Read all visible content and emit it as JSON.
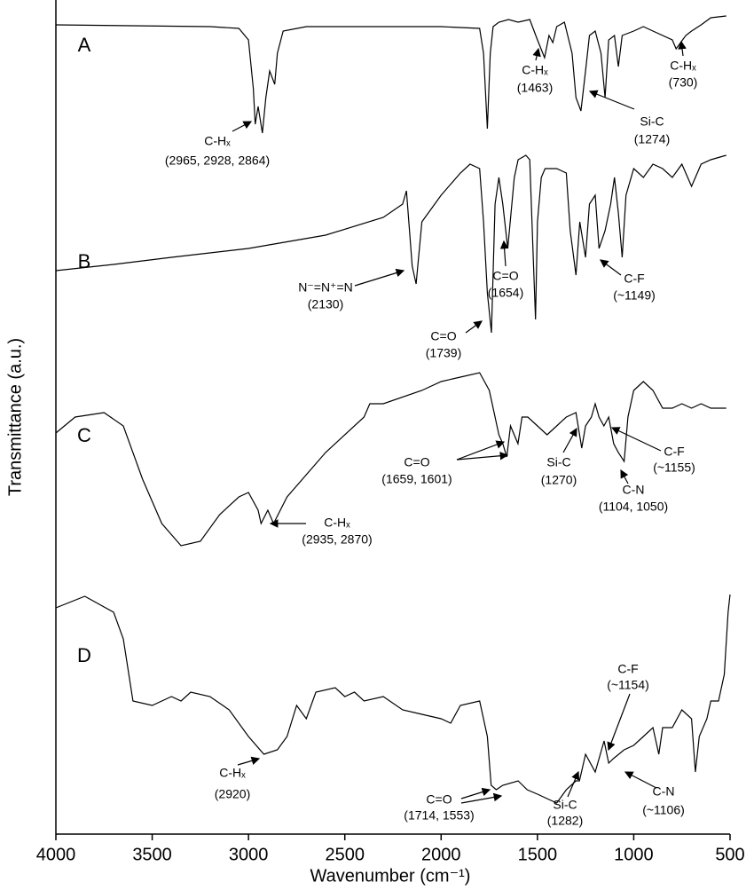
{
  "chart_data": {
    "type": "line",
    "x_label": "Wavenumber (cm⁻¹)",
    "y_label": "Transmittance (a.u.)",
    "xlim": [
      4000,
      500
    ],
    "xticks": [
      4000,
      3500,
      3000,
      2500,
      2000,
      1500,
      1000,
      500
    ],
    "ylim": [
      0,
      940
    ],
    "series": [
      {
        "name": "A",
        "color": "#000000",
        "x": [
          4000,
          3200,
          3050,
          3000,
          2975,
          2965,
          2950,
          2928,
          2910,
          2890,
          2864,
          2850,
          2820,
          2700,
          2000,
          1800,
          1780,
          1760,
          1745,
          1730,
          1700,
          1650,
          1600,
          1540,
          1500,
          1463,
          1440,
          1420,
          1400,
          1360,
          1320,
          1300,
          1274,
          1250,
          1230,
          1200,
          1170,
          1149,
          1130,
          1100,
          1080,
          1060,
          1000,
          950,
          900,
          800,
          780,
          730,
          700,
          650,
          600,
          520
        ],
        "values": [
          912,
          910,
          908,
          895,
          840,
          800,
          820,
          790,
          830,
          860,
          845,
          880,
          905,
          910,
          910,
          908,
          880,
          795,
          880,
          910,
          915,
          918,
          915,
          918,
          895,
          875,
          900,
          892,
          910,
          915,
          880,
          830,
          815,
          860,
          900,
          905,
          880,
          830,
          895,
          900,
          865,
          900,
          905,
          910,
          905,
          895,
          885,
          900,
          905,
          912,
          920,
          922
        ]
      },
      {
        "name": "B",
        "color": "#000000",
        "x": [
          4000,
          3700,
          3400,
          3000,
          2600,
          2300,
          2200,
          2180,
          2150,
          2130,
          2100,
          2000,
          1900,
          1850,
          1800,
          1780,
          1760,
          1739,
          1720,
          1700,
          1680,
          1654,
          1620,
          1600,
          1560,
          1540,
          1520,
          1510,
          1500,
          1480,
          1460,
          1400,
          1350,
          1330,
          1300,
          1280,
          1250,
          1230,
          1200,
          1180,
          1149,
          1120,
          1100,
          1080,
          1060,
          1040,
          1000,
          950,
          900,
          850,
          800,
          750,
          700,
          650,
          600,
          520
        ],
        "values": [
          635,
          642,
          650,
          660,
          675,
          695,
          710,
          725,
          640,
          620,
          690,
          720,
          745,
          755,
          750,
          690,
          610,
          565,
          710,
          740,
          710,
          660,
          740,
          760,
          765,
          760,
          640,
          580,
          690,
          740,
          750,
          750,
          745,
          680,
          630,
          690,
          650,
          710,
          720,
          660,
          680,
          710,
          740,
          700,
          650,
          720,
          750,
          740,
          755,
          750,
          740,
          755,
          730,
          755,
          760,
          765
        ]
      },
      {
        "name": "C",
        "color": "#000000",
        "x": [
          4000,
          3900,
          3750,
          3650,
          3550,
          3450,
          3350,
          3250,
          3150,
          3050,
          3000,
          2950,
          2935,
          2900,
          2870,
          2800,
          2600,
          2400,
          2370,
          2300,
          2100,
          2000,
          1900,
          1800,
          1750,
          1720,
          1700,
          1680,
          1659,
          1640,
          1601,
          1580,
          1550,
          1500,
          1450,
          1400,
          1350,
          1300,
          1270,
          1250,
          1220,
          1200,
          1180,
          1155,
          1130,
          1104,
          1080,
          1050,
          1030,
          1000,
          950,
          900,
          850,
          800,
          750,
          700,
          650,
          600,
          520
        ],
        "values": [
          452,
          470,
          475,
          460,
          400,
          350,
          325,
          330,
          360,
          380,
          385,
          365,
          350,
          365,
          350,
          380,
          430,
          470,
          485,
          485,
          500,
          510,
          515,
          520,
          500,
          470,
          450,
          440,
          425,
          460,
          440,
          470,
          470,
          460,
          450,
          460,
          470,
          475,
          435,
          460,
          470,
          485,
          470,
          460,
          470,
          440,
          430,
          420,
          470,
          500,
          510,
          500,
          480,
          480,
          485,
          480,
          485,
          480,
          480
        ]
      },
      {
        "name": "D",
        "color": "#000000",
        "x": [
          4000,
          3850,
          3700,
          3650,
          3600,
          3500,
          3400,
          3350,
          3300,
          3200,
          3100,
          3000,
          2920,
          2850,
          2800,
          2750,
          2700,
          2650,
          2550,
          2500,
          2450,
          2400,
          2300,
          2200,
          2100,
          2000,
          1950,
          1900,
          1800,
          1760,
          1740,
          1714,
          1680,
          1600,
          1553,
          1500,
          1450,
          1400,
          1350,
          1300,
          1282,
          1250,
          1200,
          1154,
          1130,
          1106,
          1050,
          1000,
          950,
          900,
          870,
          850,
          800,
          750,
          700,
          680,
          660,
          620,
          600,
          560,
          530,
          510,
          500
        ],
        "values": [
          255,
          268,
          250,
          220,
          150,
          145,
          155,
          150,
          160,
          155,
          140,
          110,
          90,
          95,
          110,
          145,
          130,
          160,
          165,
          155,
          160,
          150,
          155,
          140,
          135,
          130,
          125,
          145,
          150,
          110,
          55,
          50,
          55,
          60,
          50,
          45,
          40,
          35,
          50,
          60,
          60,
          90,
          70,
          105,
          80,
          85,
          95,
          100,
          110,
          120,
          90,
          120,
          120,
          140,
          130,
          70,
          110,
          130,
          150,
          150,
          180,
          250,
          270
        ]
      }
    ],
    "annotations": [
      {
        "lines": [
          "C-Hₓ",
          "(2965, 2928, 2864)"
        ]
      },
      {
        "lines": [
          "C-Hₓ",
          "(1463)"
        ]
      },
      {
        "lines": [
          "Si-C",
          "(1274)"
        ]
      },
      {
        "lines": [
          "C-Hₓ",
          "(730)"
        ]
      },
      {
        "lines": [
          "N⁻=N⁺=N",
          "(2130)"
        ]
      },
      {
        "lines": [
          "C=O",
          "(1654)"
        ]
      },
      {
        "lines": [
          "C=O",
          "(1739)"
        ]
      },
      {
        "lines": [
          "C-F",
          "(~1149)"
        ]
      },
      {
        "lines": [
          "C=O",
          "(1659, 1601)"
        ]
      },
      {
        "lines": [
          "Si-C",
          "(1270)"
        ]
      },
      {
        "lines": [
          "C-F",
          "(~1155)"
        ]
      },
      {
        "lines": [
          "C-N",
          "(1104, 1050)"
        ]
      },
      {
        "lines": [
          "C-Hₓ",
          "(2935, 2870)"
        ]
      },
      {
        "lines": [
          "C-Hₓ",
          "(2920)"
        ]
      },
      {
        "lines": [
          "C=O",
          "(1714, 1553)"
        ]
      },
      {
        "lines": [
          "Si-C",
          "(1282)"
        ]
      },
      {
        "lines": [
          "C-F",
          "(~1154)"
        ]
      },
      {
        "lines": [
          "C-N",
          "(~1106)"
        ]
      }
    ]
  }
}
